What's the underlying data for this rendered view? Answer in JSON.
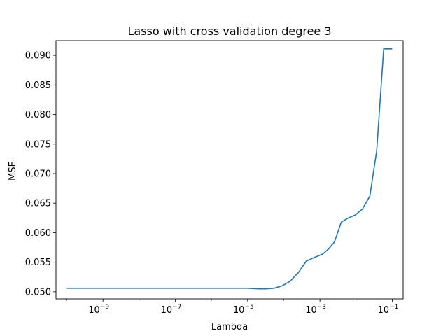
{
  "chart_data": {
    "type": "line",
    "title": "Lasso with cross validation degree 3",
    "xlabel": "Lambda",
    "ylabel": "MSE",
    "xscale": "log",
    "xlim": [
      5e-11,
      0.2
    ],
    "ylim": [
      0.0488,
      0.0925
    ],
    "grid": false,
    "legend": "none",
    "colors": {
      "line": "#1f77b4"
    },
    "yticks": [
      0.05,
      0.055,
      0.06,
      0.065,
      0.07,
      0.075,
      0.08,
      0.085,
      0.09
    ],
    "ytick_labels": [
      "0.050",
      "0.055",
      "0.060",
      "0.065",
      "0.070",
      "0.075",
      "0.080",
      "0.085",
      "0.090"
    ],
    "xticks": [
      1e-09,
      1e-07,
      1e-05,
      0.001,
      0.1
    ],
    "xtick_labels": [
      {
        "base": "10",
        "exp": "−9"
      },
      {
        "base": "10",
        "exp": "−7"
      },
      {
        "base": "10",
        "exp": "−5"
      },
      {
        "base": "10",
        "exp": "−3"
      },
      {
        "base": "10",
        "exp": "−1"
      }
    ],
    "series": [
      {
        "x": [
          1e-10,
          1e-09,
          1e-08,
          1e-07,
          1e-06,
          4.6e-06,
          1e-05,
          2e-05,
          3.2e-05,
          5.4e-05,
          9e-05,
          0.00015,
          0.00025,
          0.00042,
          0.0007,
          0.0012,
          0.0017,
          0.0025,
          0.0039,
          0.0061,
          0.0095,
          0.015,
          0.024,
          0.037,
          0.058,
          0.1
        ],
        "y": [
          0.0506,
          0.0506,
          0.0506,
          0.0506,
          0.0506,
          0.0506,
          0.0506,
          0.0505,
          0.0505,
          0.0506,
          0.051,
          0.0518,
          0.0532,
          0.0552,
          0.0558,
          0.0564,
          0.0572,
          0.0584,
          0.0618,
          0.0625,
          0.063,
          0.064,
          0.0662,
          0.0738,
          0.0911,
          0.0911
        ]
      }
    ]
  }
}
